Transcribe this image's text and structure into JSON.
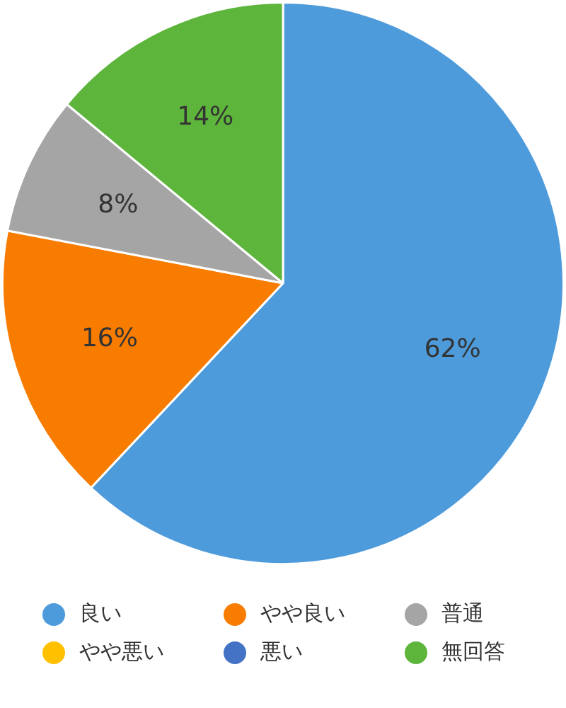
{
  "chart_data": {
    "type": "pie",
    "categories": [
      "良い",
      "やや良い",
      "普通",
      "やや悪い",
      "悪い",
      "無回答"
    ],
    "values": [
      62,
      16,
      8,
      0,
      0,
      14
    ],
    "colors": [
      "#4e9bdc",
      "#f87c00",
      "#a5a5a5",
      "#ffc000",
      "#4472c4",
      "#5db53b"
    ],
    "value_labels": [
      "62%",
      "16%",
      "8%",
      null,
      null,
      "14%"
    ],
    "legend": "bottom"
  }
}
